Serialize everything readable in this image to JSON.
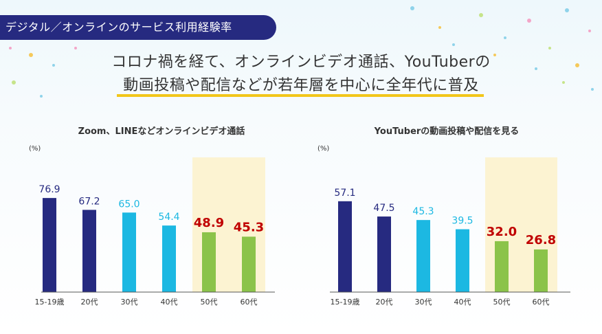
{
  "badge": "デジタル／オンラインのサービス利用経験率",
  "headline": {
    "line1": "コロナ禍を経て、オンラインビデオ通話、YouTuberの",
    "line2": "動画投稿や配信などが若年層を中心に全年代に普及"
  },
  "colors": {
    "navy": "#262a80",
    "sky": "#1cb8e2",
    "green": "#8bc34a",
    "highlight_bg": "#fcf3d2",
    "highlight_label": "#c00000",
    "accent_underline": "#f2c61a"
  },
  "chart_data": [
    {
      "type": "bar",
      "title": "Zoom、LINEなどオンラインビデオ通話",
      "ylabel": "(%)",
      "categories": [
        "15-19歳",
        "20代",
        "30代",
        "40代",
        "50代",
        "60代"
      ],
      "values": [
        76.9,
        67.2,
        65.0,
        54.4,
        48.9,
        45.3
      ],
      "value_labels": [
        "76.9",
        "67.2",
        "65.0",
        "54.4",
        "48.9",
        "45.3"
      ],
      "bar_colors": [
        "#262a80",
        "#262a80",
        "#1cb8e2",
        "#1cb8e2",
        "#8bc34a",
        "#8bc34a"
      ],
      "label_colors": [
        "#262a80",
        "#262a80",
        "#1cb8e2",
        "#1cb8e2",
        "#c00000",
        "#c00000"
      ],
      "highlight_categories": [
        "50代",
        "60代"
      ],
      "ylim": [
        0,
        100
      ],
      "grid": false
    },
    {
      "type": "bar",
      "title": "YouTuberの動画投稿や配信を見る",
      "ylabel": "(%)",
      "categories": [
        "15-19歳",
        "20代",
        "30代",
        "40代",
        "50代",
        "60代"
      ],
      "values": [
        57.1,
        47.5,
        45.3,
        39.5,
        32.0,
        26.8
      ],
      "value_labels": [
        "57.1",
        "47.5",
        "45.3",
        "39.5",
        "32.0",
        "26.8"
      ],
      "bar_colors": [
        "#262a80",
        "#262a80",
        "#1cb8e2",
        "#1cb8e2",
        "#8bc34a",
        "#8bc34a"
      ],
      "label_colors": [
        "#262a80",
        "#262a80",
        "#1cb8e2",
        "#1cb8e2",
        "#c00000",
        "#c00000"
      ],
      "highlight_categories": [
        "50代",
        "60代"
      ],
      "ylim": [
        0,
        76.9
      ],
      "grid": false
    }
  ]
}
